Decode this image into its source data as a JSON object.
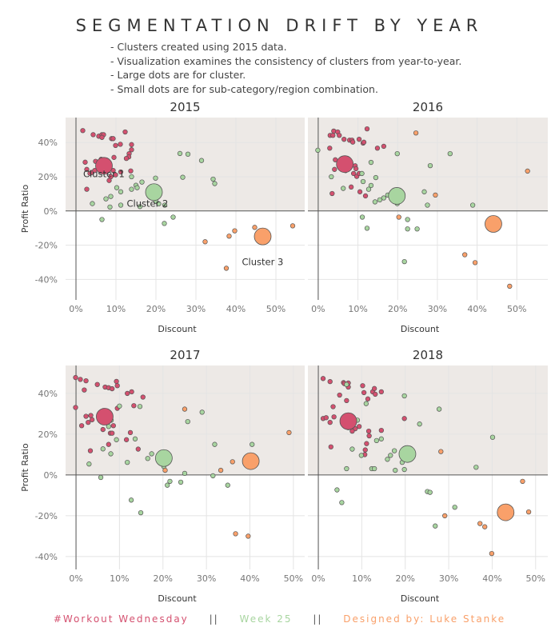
{
  "title": "SEGMENTATION DRIFT BY YEAR",
  "notes": [
    "- Clusters created using 2015 data.",
    "- Visualization examines the consistency of clusters from year-to-year.",
    "- Large dots are for cluster.",
    "- Small dots are for sub-category/region combination."
  ],
  "footer": {
    "part1": "#Workout Wednesday",
    "sep": "||",
    "part2": "Week 25",
    "part3": "Designed by: Luke Stanke",
    "colors": {
      "part1": "#d4506f",
      "part2": "#a8d5a0",
      "part3": "#f9a06a",
      "sep": "#555555"
    }
  },
  "colors": {
    "cluster1": "#d4506f",
    "cluster2": "#a8d5a0",
    "cluster3": "#f9a06a",
    "positive_bg": "#ede9e6"
  },
  "chart_data": [
    {
      "type": "scatter",
      "title": "2015",
      "xlabel": "Discount",
      "ylabel": "Profit Ratio",
      "xticks": [
        "0%",
        "10%",
        "20%",
        "30%",
        "40%",
        "50%"
      ],
      "yticks": [
        "-40%",
        "-20%",
        "0%",
        "20%",
        "40%"
      ],
      "xlim": [
        -2.6,
        57.2
      ],
      "ylim": [
        -52,
        54.6
      ],
      "grid": true,
      "cluster_labels": [
        "Cluster 1",
        "Cluster 2",
        "Cluster 3"
      ],
      "clusters": [
        [
          7,
          26.4
        ],
        [
          19.5,
          11
        ],
        [
          46.7,
          -14.9
        ]
      ],
      "points": [
        [
          [
            1.7,
            47
          ],
          [
            4.3,
            44.6
          ],
          [
            5.7,
            43.7
          ],
          [
            6.5,
            44.6
          ],
          [
            6.9,
            44.6
          ],
          [
            6.5,
            43
          ],
          [
            8.9,
            42.3
          ],
          [
            9.3,
            42.3
          ],
          [
            12.3,
            46.2
          ],
          [
            9.9,
            38.3
          ],
          [
            11.1,
            39
          ],
          [
            13.9,
            38.8
          ],
          [
            13.9,
            35.8
          ],
          [
            13.3,
            33.5
          ],
          [
            13.2,
            31.6
          ],
          [
            12.6,
            30.7
          ],
          [
            9.5,
            31.3
          ],
          [
            2.3,
            28.5
          ],
          [
            4.9,
            29
          ],
          [
            6.3,
            30.2
          ],
          [
            2.7,
            24.3
          ],
          [
            3.5,
            22
          ],
          [
            4,
            22.5
          ],
          [
            4.7,
            23.7
          ],
          [
            7,
            24.8
          ],
          [
            7.9,
            26
          ],
          [
            9.3,
            23.7
          ],
          [
            11.2,
            22.8
          ],
          [
            13.7,
            23.4
          ],
          [
            9.9,
            21.1
          ],
          [
            8.7,
            20
          ],
          [
            8.3,
            17.8
          ],
          [
            2.7,
            12.7
          ]
        ],
        [
          [
            26,
            33.6
          ],
          [
            28,
            33.2
          ],
          [
            31.4,
            29.5
          ],
          [
            26.7,
            19.7
          ],
          [
            34.3,
            18.6
          ],
          [
            34.7,
            16
          ],
          [
            19.9,
            19.2
          ],
          [
            16.5,
            16.9
          ],
          [
            13.9,
            20
          ],
          [
            15,
            15
          ],
          [
            15.3,
            13.6
          ],
          [
            13.9,
            12.7
          ],
          [
            11.2,
            11.2
          ],
          [
            10.2,
            13.6
          ],
          [
            8.7,
            8.5
          ],
          [
            7.5,
            7.1
          ],
          [
            4.1,
            4.3
          ],
          [
            8.5,
            2.3
          ],
          [
            11.2,
            3.4
          ],
          [
            19.9,
            9.8
          ],
          [
            20,
            5.6
          ],
          [
            20.7,
            4.2
          ],
          [
            22.2,
            3.4
          ],
          [
            16,
            2.6
          ],
          [
            24.3,
            -3.6
          ],
          [
            22.1,
            -7.3
          ],
          [
            6.5,
            -5
          ]
        ],
        [
          [
            44.7,
            -9.6
          ],
          [
            39.7,
            -11.6
          ],
          [
            38.3,
            -14.7
          ],
          [
            32.3,
            -18
          ],
          [
            37.6,
            -33.5
          ],
          [
            54.2,
            -8.7
          ],
          [
            46.1,
            -13.8
          ]
        ]
      ]
    },
    {
      "type": "scatter",
      "title": "2016",
      "xlabel": "Discount",
      "ylabel": "",
      "xticks": [
        "0%",
        "10%",
        "20%",
        "30%",
        "40%",
        "50%"
      ],
      "yticks": [],
      "xlim": [
        -2.6,
        57.8
      ],
      "ylim": [
        -52,
        54.6
      ],
      "grid": true,
      "clusters": [
        [
          6.7,
          27.4
        ],
        [
          19.8,
          8.8
        ],
        [
          44.1,
          -7.6
        ]
      ],
      "points": [
        [
          [
            3.9,
            46.7
          ],
          [
            4.9,
            46.2
          ],
          [
            3,
            44.2
          ],
          [
            3.7,
            44.2
          ],
          [
            5.3,
            44.2
          ],
          [
            6.5,
            41.9
          ],
          [
            7.9,
            41.4
          ],
          [
            8.5,
            41.4
          ],
          [
            8.7,
            40.3
          ],
          [
            10.3,
            41.9
          ],
          [
            12.3,
            48
          ],
          [
            11.3,
            39.7
          ],
          [
            11.5,
            40.2
          ],
          [
            2.9,
            36.7
          ],
          [
            14.9,
            36.7
          ],
          [
            16.5,
            37.8
          ],
          [
            4.3,
            29.9
          ],
          [
            5.2,
            27.1
          ],
          [
            6.2,
            27.9
          ],
          [
            6,
            25.1
          ],
          [
            6.5,
            24.7
          ],
          [
            6.9,
            23.6
          ],
          [
            4.1,
            24.3
          ],
          [
            8.3,
            26.5
          ],
          [
            9.3,
            26.4
          ],
          [
            9.5,
            24.7
          ],
          [
            8.9,
            21.9
          ],
          [
            9.7,
            20.2
          ],
          [
            10.3,
            21.9
          ],
          [
            8.3,
            14
          ],
          [
            3.5,
            10.2
          ],
          [
            10.5,
            11.2
          ],
          [
            11.9,
            8.8
          ]
        ],
        [
          [
            -0.1,
            35.5
          ],
          [
            19.9,
            33.5
          ],
          [
            33.2,
            33.5
          ],
          [
            13.3,
            28.4
          ],
          [
            28.2,
            26.5
          ],
          [
            3.3,
            20
          ],
          [
            11,
            21.9
          ],
          [
            14.5,
            19.5
          ],
          [
            11.3,
            17.2
          ],
          [
            13.3,
            14.9
          ],
          [
            12.7,
            12.7
          ],
          [
            6.3,
            13.2
          ],
          [
            17.5,
            9.3
          ],
          [
            16.5,
            7.6
          ],
          [
            15.5,
            6.5
          ],
          [
            14.3,
            5.3
          ],
          [
            19.9,
            11.2
          ],
          [
            19.9,
            9.9
          ],
          [
            19.9,
            4.3
          ],
          [
            26.7,
            11.2
          ],
          [
            27.5,
            3.4
          ],
          [
            38.9,
            3.4
          ],
          [
            11.1,
            -3.6
          ],
          [
            12.3,
            -10.1
          ],
          [
            22.5,
            -5
          ],
          [
            22.5,
            -10.5
          ],
          [
            24.9,
            -10.5
          ],
          [
            21.7,
            -29.6
          ]
        ],
        [
          [
            24.6,
            45.6
          ],
          [
            29.5,
            9.3
          ],
          [
            20.3,
            -3.6
          ],
          [
            52.7,
            23.3
          ],
          [
            36.9,
            -25.6
          ],
          [
            39.5,
            -30.2
          ],
          [
            48.2,
            -44
          ]
        ]
      ]
    },
    {
      "type": "scatter",
      "title": "2017",
      "xlabel": "Discount",
      "ylabel": "Profit Ratio",
      "xticks": [
        "0%",
        "10%",
        "20%",
        "30%",
        "40%",
        "50%"
      ],
      "yticks": [
        "-40%",
        "-20%",
        "0%",
        "20%",
        "40%"
      ],
      "xlim": [
        -2.4,
        52.6
      ],
      "ylim": [
        -46.3,
        53.7
      ],
      "grid": true,
      "clusters": [
        [
          6.6,
          28.6
        ],
        [
          20.2,
          8.3
        ],
        [
          40.2,
          6.8
        ]
      ],
      "points": [
        [
          [
            -0.1,
            47.8
          ],
          [
            1,
            46.9
          ],
          [
            2.3,
            46.2
          ],
          [
            4.9,
            44.4
          ],
          [
            6.7,
            43.1
          ],
          [
            7.5,
            42.8
          ],
          [
            8.3,
            42.3
          ],
          [
            9.3,
            45.9
          ],
          [
            9.5,
            43.8
          ],
          [
            1.9,
            41.7
          ],
          [
            11.8,
            40
          ],
          [
            12.8,
            40.8
          ],
          [
            15.4,
            38.2
          ],
          [
            -0.1,
            33.1
          ],
          [
            9.5,
            32.7
          ],
          [
            13.3,
            34
          ],
          [
            2.3,
            28.8
          ],
          [
            3.4,
            29.2
          ],
          [
            3.7,
            27.1
          ],
          [
            2.8,
            25.8
          ],
          [
            1.3,
            24.2
          ],
          [
            6.2,
            22.3
          ],
          [
            8.6,
            24.2
          ],
          [
            7.9,
            20.5
          ],
          [
            8.3,
            20.5
          ],
          [
            12.5,
            20.8
          ],
          [
            11.6,
            17.3
          ],
          [
            7.5,
            15
          ],
          [
            14.3,
            12.7
          ],
          [
            3.3,
            11.9
          ]
        ],
        [
          [
            10,
            33.8
          ],
          [
            14.7,
            33.6
          ],
          [
            29,
            30.8
          ],
          [
            25.7,
            26.2
          ],
          [
            8.1,
            26.9
          ],
          [
            7.5,
            23.8
          ],
          [
            9.3,
            17.3
          ],
          [
            13.6,
            17.7
          ],
          [
            31.9,
            15
          ],
          [
            40.5,
            15
          ],
          [
            6.2,
            12.8
          ],
          [
            8,
            10.4
          ],
          [
            17.4,
            10.4
          ],
          [
            16.5,
            8.1
          ],
          [
            11.8,
            6.2
          ],
          [
            3,
            5.4
          ],
          [
            19.9,
            9.2
          ],
          [
            19.9,
            6.5
          ],
          [
            20.2,
            4.2
          ],
          [
            25,
            0.8
          ],
          [
            31.5,
            -0.4
          ],
          [
            5.7,
            -1.2
          ],
          [
            21.6,
            -3.1
          ],
          [
            21,
            -5
          ],
          [
            24.1,
            -3.5
          ],
          [
            34.9,
            -5
          ],
          [
            12.7,
            -12.3
          ],
          [
            14.9,
            -18.5
          ]
        ],
        [
          [
            25,
            32.3
          ],
          [
            49,
            20.8
          ],
          [
            36,
            6.5
          ],
          [
            33.3,
            2.3
          ],
          [
            20.5,
            2.3
          ],
          [
            36.7,
            -28.8
          ],
          [
            39.6,
            -30
          ]
        ]
      ]
    },
    {
      "type": "scatter",
      "title": "2018",
      "xlabel": "Discount",
      "ylabel": "",
      "xticks": [
        "0%",
        "10%",
        "20%",
        "30%",
        "40%",
        "50%"
      ],
      "yticks": [],
      "xlim": [
        -2.4,
        52.8
      ],
      "ylim": [
        -46.3,
        53.7
      ],
      "grid": true,
      "clusters": [
        [
          6.9,
          26.4
        ],
        [
          20.5,
          10.3
        ],
        [
          43.1,
          -18.3
        ]
      ],
      "points": [
        [
          [
            1.1,
            47.3
          ],
          [
            2.7,
            45.8
          ],
          [
            5.8,
            45.3
          ],
          [
            6,
            44.8
          ],
          [
            6.9,
            45.1
          ],
          [
            6.9,
            43.1
          ],
          [
            10.2,
            43.8
          ],
          [
            10.5,
            40.4
          ],
          [
            12.5,
            40.8
          ],
          [
            12.9,
            42.4
          ],
          [
            13.1,
            39.6
          ],
          [
            14.5,
            40.8
          ],
          [
            4.9,
            39.2
          ],
          [
            6.5,
            36.5
          ],
          [
            11.4,
            37.3
          ],
          [
            3.4,
            33.5
          ],
          [
            1.1,
            27.7
          ],
          [
            1.8,
            28.1
          ],
          [
            3.6,
            28.5
          ],
          [
            2.7,
            25.8
          ],
          [
            19.8,
            27.7
          ],
          [
            6.9,
            23.2
          ],
          [
            8.5,
            22.7
          ],
          [
            7.8,
            21.5
          ],
          [
            9.4,
            23.8
          ],
          [
            11.6,
            21.5
          ],
          [
            11.7,
            19.2
          ],
          [
            14.5,
            21.9
          ],
          [
            11.1,
            15.4
          ],
          [
            10.8,
            12.3
          ],
          [
            10.7,
            10
          ],
          [
            2.9,
            13.8
          ]
        ],
        [
          [
            6.5,
            44.4
          ],
          [
            19.8,
            38.8
          ],
          [
            11,
            35
          ],
          [
            27.8,
            32.3
          ],
          [
            9,
            26.9
          ],
          [
            23.3,
            25
          ],
          [
            40.1,
            18.5
          ],
          [
            13.4,
            16.9
          ],
          [
            14.5,
            17.7
          ],
          [
            7.8,
            12.7
          ],
          [
            9.9,
            9.6
          ],
          [
            17.5,
            11.9
          ],
          [
            16.6,
            9.6
          ],
          [
            15.9,
            7.7
          ],
          [
            19.8,
            8.5
          ],
          [
            19.3,
            6.2
          ],
          [
            6.5,
            3.1
          ],
          [
            12.3,
            3.1
          ],
          [
            12.9,
            3.1
          ],
          [
            17.7,
            2.3
          ],
          [
            19.8,
            2.7
          ],
          [
            36.3,
            3.8
          ],
          [
            4.3,
            -7.3
          ],
          [
            5.4,
            -13.5
          ],
          [
            25.1,
            -8.1
          ],
          [
            25.7,
            -8.5
          ],
          [
            31.4,
            -15.8
          ],
          [
            26.9,
            -25
          ]
        ],
        [
          [
            28.2,
            11.5
          ],
          [
            47,
            -3.1
          ],
          [
            48.4,
            -18.1
          ],
          [
            29.1,
            -20
          ],
          [
            37.2,
            -23.8
          ],
          [
            38.3,
            -25.4
          ],
          [
            39.9,
            -38.5
          ]
        ]
      ]
    }
  ]
}
